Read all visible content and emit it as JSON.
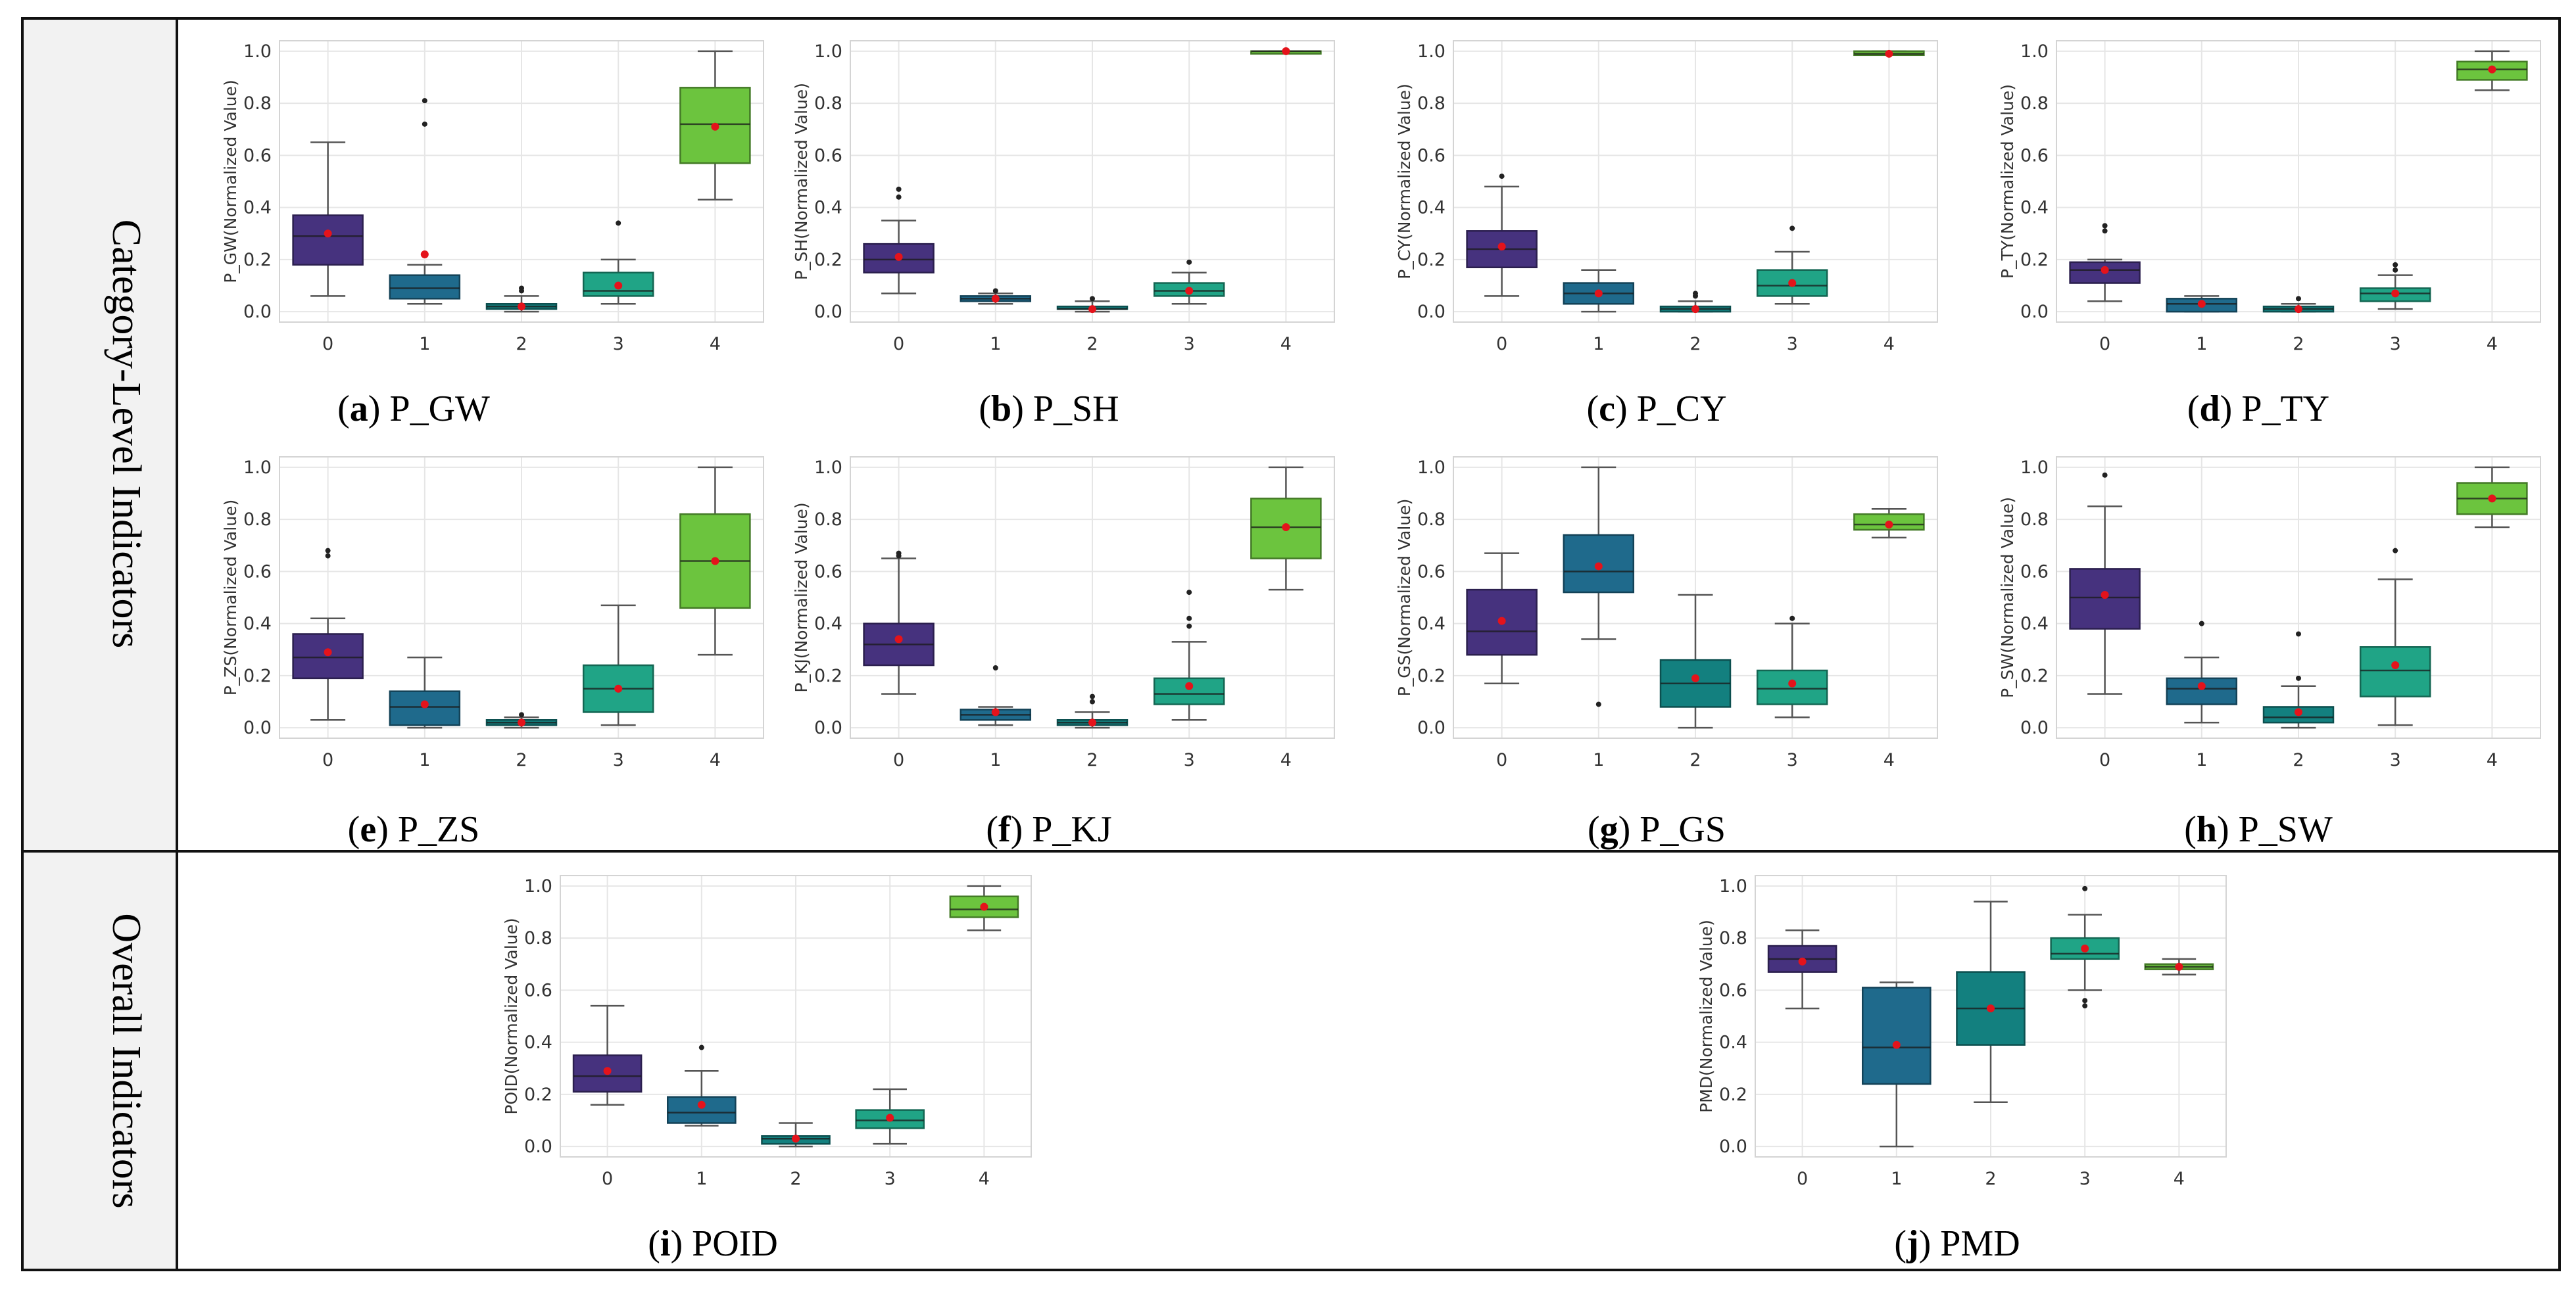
{
  "row_labels": [
    "Category-Level Indicators",
    "Overall Indicators"
  ],
  "colors": {
    "palette": [
      "#46327e",
      "#1f6a8c",
      "#13807f",
      "#20a486",
      "#6cc43e"
    ],
    "mean_marker": "#e4131b",
    "outlier": "#222222",
    "median": "#1a1a1a",
    "whisker": "#555555",
    "grid": "#e6e6e6",
    "frame": "#d4d4d4",
    "border": "#111111",
    "row_label_bg": "#f2f2f2"
  },
  "chart_data": [
    {
      "id": "a",
      "type": "box",
      "letter": "a",
      "name": "P_GW",
      "ylabel": "P_GW(Normalized Value)",
      "categories": [
        "0",
        "1",
        "2",
        "3",
        "4"
      ],
      "yticks": [
        "0.0",
        "0.2",
        "0.4",
        "0.6",
        "0.8",
        "1.0"
      ],
      "ylim": [
        -0.04,
        1.04
      ],
      "boxes": [
        {
          "category": "0",
          "whislo": 0.06,
          "q1": 0.18,
          "med": 0.29,
          "q3": 0.37,
          "whishi": 0.65,
          "mean": 0.3,
          "fliers": []
        },
        {
          "category": "1",
          "whislo": 0.03,
          "q1": 0.05,
          "med": 0.09,
          "q3": 0.14,
          "whishi": 0.18,
          "mean": 0.22,
          "fliers": [
            0.72,
            0.81
          ]
        },
        {
          "category": "2",
          "whislo": 0.0,
          "q1": 0.01,
          "med": 0.02,
          "q3": 0.03,
          "whishi": 0.06,
          "mean": 0.02,
          "fliers": [
            0.08,
            0.09
          ]
        },
        {
          "category": "3",
          "whislo": 0.03,
          "q1": 0.06,
          "med": 0.08,
          "q3": 0.15,
          "whishi": 0.2,
          "mean": 0.1,
          "fliers": [
            0.34
          ]
        },
        {
          "category": "4",
          "whislo": 0.43,
          "q1": 0.57,
          "med": 0.72,
          "q3": 0.86,
          "whishi": 1.0,
          "mean": 0.71,
          "fliers": []
        }
      ]
    },
    {
      "id": "b",
      "type": "box",
      "letter": "b",
      "name": "P_SH",
      "ylabel": "P_SH(Normalized Value)",
      "categories": [
        "0",
        "1",
        "2",
        "3",
        "4"
      ],
      "yticks": [
        "0.0",
        "0.2",
        "0.4",
        "0.6",
        "0.8",
        "1.0"
      ],
      "ylim": [
        -0.04,
        1.04
      ],
      "boxes": [
        {
          "category": "0",
          "whislo": 0.07,
          "q1": 0.15,
          "med": 0.2,
          "q3": 0.26,
          "whishi": 0.35,
          "mean": 0.21,
          "fliers": [
            0.44,
            0.47
          ]
        },
        {
          "category": "1",
          "whislo": 0.03,
          "q1": 0.04,
          "med": 0.05,
          "q3": 0.06,
          "whishi": 0.07,
          "mean": 0.05,
          "fliers": [
            0.08
          ]
        },
        {
          "category": "2",
          "whislo": 0.0,
          "q1": 0.01,
          "med": 0.01,
          "q3": 0.02,
          "whishi": 0.04,
          "mean": 0.01,
          "fliers": [
            0.05
          ]
        },
        {
          "category": "3",
          "whislo": 0.03,
          "q1": 0.06,
          "med": 0.08,
          "q3": 0.11,
          "whishi": 0.15,
          "mean": 0.08,
          "fliers": [
            0.19
          ]
        },
        {
          "category": "4",
          "whislo": 0.995,
          "q1": 0.995,
          "med": 1.0,
          "q3": 1.0,
          "whishi": 1.0,
          "mean": 1.0,
          "fliers": []
        }
      ]
    },
    {
      "id": "c",
      "type": "box",
      "letter": "c",
      "name": "P_CY",
      "ylabel": "P_CY(Normalized Value)",
      "categories": [
        "0",
        "1",
        "2",
        "3",
        "4"
      ],
      "yticks": [
        "0.0",
        "0.2",
        "0.4",
        "0.6",
        "0.8",
        "1.0"
      ],
      "ylim": [
        -0.04,
        1.04
      ],
      "boxes": [
        {
          "category": "0",
          "whislo": 0.06,
          "q1": 0.17,
          "med": 0.24,
          "q3": 0.31,
          "whishi": 0.48,
          "mean": 0.25,
          "fliers": [
            0.52
          ]
        },
        {
          "category": "1",
          "whislo": 0.0,
          "q1": 0.03,
          "med": 0.07,
          "q3": 0.11,
          "whishi": 0.16,
          "mean": 0.07,
          "fliers": []
        },
        {
          "category": "2",
          "whislo": 0.0,
          "q1": 0.0,
          "med": 0.01,
          "q3": 0.02,
          "whishi": 0.04,
          "mean": 0.01,
          "fliers": [
            0.06,
            0.07
          ]
        },
        {
          "category": "3",
          "whislo": 0.03,
          "q1": 0.06,
          "med": 0.1,
          "q3": 0.16,
          "whishi": 0.23,
          "mean": 0.11,
          "fliers": [
            0.32
          ]
        },
        {
          "category": "4",
          "whislo": 0.985,
          "q1": 0.985,
          "med": 0.99,
          "q3": 1.0,
          "whishi": 1.0,
          "mean": 0.99,
          "fliers": []
        }
      ]
    },
    {
      "id": "d",
      "type": "box",
      "letter": "d",
      "name": "P_TY",
      "ylabel": "P_TY(Normalized Value)",
      "categories": [
        "0",
        "1",
        "2",
        "3",
        "4"
      ],
      "yticks": [
        "0.0",
        "0.2",
        "0.4",
        "0.6",
        "0.8",
        "1.0"
      ],
      "ylim": [
        -0.04,
        1.04
      ],
      "boxes": [
        {
          "category": "0",
          "whislo": 0.04,
          "q1": 0.11,
          "med": 0.16,
          "q3": 0.19,
          "whishi": 0.2,
          "mean": 0.16,
          "fliers": [
            0.31,
            0.33
          ]
        },
        {
          "category": "1",
          "whislo": 0.0,
          "q1": 0.0,
          "med": 0.03,
          "q3": 0.05,
          "whishi": 0.06,
          "mean": 0.03,
          "fliers": []
        },
        {
          "category": "2",
          "whislo": 0.0,
          "q1": 0.0,
          "med": 0.01,
          "q3": 0.02,
          "whishi": 0.03,
          "mean": 0.01,
          "fliers": [
            0.05
          ]
        },
        {
          "category": "3",
          "whislo": 0.01,
          "q1": 0.04,
          "med": 0.07,
          "q3": 0.09,
          "whishi": 0.14,
          "mean": 0.07,
          "fliers": [
            0.16,
            0.18
          ]
        },
        {
          "category": "4",
          "whislo": 0.85,
          "q1": 0.89,
          "med": 0.93,
          "q3": 0.96,
          "whishi": 1.0,
          "mean": 0.93,
          "fliers": []
        }
      ]
    },
    {
      "id": "e",
      "type": "box",
      "letter": "e",
      "name": "P_ZS",
      "ylabel": "P_ZS(Normalized Value)",
      "categories": [
        "0",
        "1",
        "2",
        "3",
        "4"
      ],
      "yticks": [
        "0.0",
        "0.2",
        "0.4",
        "0.6",
        "0.8",
        "1.0"
      ],
      "ylim": [
        -0.04,
        1.04
      ],
      "boxes": [
        {
          "category": "0",
          "whislo": 0.03,
          "q1": 0.19,
          "med": 0.27,
          "q3": 0.36,
          "whishi": 0.42,
          "mean": 0.29,
          "fliers": [
            0.66,
            0.68
          ]
        },
        {
          "category": "1",
          "whislo": 0.0,
          "q1": 0.01,
          "med": 0.08,
          "q3": 0.14,
          "whishi": 0.27,
          "mean": 0.09,
          "fliers": []
        },
        {
          "category": "2",
          "whislo": 0.0,
          "q1": 0.01,
          "med": 0.02,
          "q3": 0.03,
          "whishi": 0.04,
          "mean": 0.02,
          "fliers": [
            0.05
          ]
        },
        {
          "category": "3",
          "whislo": 0.01,
          "q1": 0.06,
          "med": 0.15,
          "q3": 0.24,
          "whishi": 0.47,
          "mean": 0.15,
          "fliers": []
        },
        {
          "category": "4",
          "whislo": 0.28,
          "q1": 0.46,
          "med": 0.64,
          "q3": 0.82,
          "whishi": 1.0,
          "mean": 0.64,
          "fliers": []
        }
      ]
    },
    {
      "id": "f",
      "type": "box",
      "letter": "f",
      "name": "P_KJ",
      "ylabel": "P_KJ(Normalized Value)",
      "categories": [
        "0",
        "1",
        "2",
        "3",
        "4"
      ],
      "yticks": [
        "0.0",
        "0.2",
        "0.4",
        "0.6",
        "0.8",
        "1.0"
      ],
      "ylim": [
        -0.04,
        1.04
      ],
      "boxes": [
        {
          "category": "0",
          "whislo": 0.13,
          "q1": 0.24,
          "med": 0.32,
          "q3": 0.4,
          "whishi": 0.65,
          "mean": 0.34,
          "fliers": [
            0.66,
            0.67
          ]
        },
        {
          "category": "1",
          "whislo": 0.01,
          "q1": 0.03,
          "med": 0.05,
          "q3": 0.07,
          "whishi": 0.08,
          "mean": 0.06,
          "fliers": [
            0.23
          ]
        },
        {
          "category": "2",
          "whislo": 0.0,
          "q1": 0.01,
          "med": 0.02,
          "q3": 0.03,
          "whishi": 0.06,
          "mean": 0.02,
          "fliers": [
            0.1,
            0.12
          ]
        },
        {
          "category": "3",
          "whislo": 0.03,
          "q1": 0.09,
          "med": 0.13,
          "q3": 0.19,
          "whishi": 0.33,
          "mean": 0.16,
          "fliers": [
            0.39,
            0.42,
            0.52
          ]
        },
        {
          "category": "4",
          "whislo": 0.53,
          "q1": 0.65,
          "med": 0.77,
          "q3": 0.88,
          "whishi": 1.0,
          "mean": 0.77,
          "fliers": []
        }
      ]
    },
    {
      "id": "g",
      "type": "box",
      "letter": "g",
      "name": "P_GS",
      "ylabel": "P_GS(Normalized Value)",
      "categories": [
        "0",
        "1",
        "2",
        "3",
        "4"
      ],
      "yticks": [
        "0.0",
        "0.2",
        "0.4",
        "0.6",
        "0.8",
        "1.0"
      ],
      "ylim": [
        -0.04,
        1.04
      ],
      "boxes": [
        {
          "category": "0",
          "whislo": 0.17,
          "q1": 0.28,
          "med": 0.37,
          "q3": 0.53,
          "whishi": 0.67,
          "mean": 0.41,
          "fliers": []
        },
        {
          "category": "1",
          "whislo": 0.34,
          "q1": 0.52,
          "med": 0.6,
          "q3": 0.74,
          "whishi": 1.0,
          "mean": 0.62,
          "fliers": [
            0.09
          ]
        },
        {
          "category": "2",
          "whislo": 0.0,
          "q1": 0.08,
          "med": 0.17,
          "q3": 0.26,
          "whishi": 0.51,
          "mean": 0.19,
          "fliers": []
        },
        {
          "category": "3",
          "whislo": 0.04,
          "q1": 0.09,
          "med": 0.15,
          "q3": 0.22,
          "whishi": 0.4,
          "mean": 0.17,
          "fliers": [
            0.42
          ]
        },
        {
          "category": "4",
          "whislo": 0.73,
          "q1": 0.76,
          "med": 0.78,
          "q3": 0.82,
          "whishi": 0.84,
          "mean": 0.78,
          "fliers": []
        }
      ]
    },
    {
      "id": "h",
      "type": "box",
      "letter": "h",
      "name": "P_SW",
      "ylabel": "P_SW(Normalized Value)",
      "categories": [
        "0",
        "1",
        "2",
        "3",
        "4"
      ],
      "yticks": [
        "0.0",
        "0.2",
        "0.4",
        "0.6",
        "0.8",
        "1.0"
      ],
      "ylim": [
        -0.04,
        1.04
      ],
      "boxes": [
        {
          "category": "0",
          "whislo": 0.13,
          "q1": 0.38,
          "med": 0.5,
          "q3": 0.61,
          "whishi": 0.85,
          "mean": 0.51,
          "fliers": [
            0.97
          ]
        },
        {
          "category": "1",
          "whislo": 0.02,
          "q1": 0.09,
          "med": 0.15,
          "q3": 0.19,
          "whishi": 0.27,
          "mean": 0.16,
          "fliers": [
            0.4
          ]
        },
        {
          "category": "2",
          "whislo": 0.0,
          "q1": 0.02,
          "med": 0.04,
          "q3": 0.08,
          "whishi": 0.16,
          "mean": 0.06,
          "fliers": [
            0.19,
            0.36
          ]
        },
        {
          "category": "3",
          "whislo": 0.01,
          "q1": 0.12,
          "med": 0.22,
          "q3": 0.31,
          "whishi": 0.57,
          "mean": 0.24,
          "fliers": [
            0.68
          ]
        },
        {
          "category": "4",
          "whislo": 0.77,
          "q1": 0.82,
          "med": 0.88,
          "q3": 0.94,
          "whishi": 1.0,
          "mean": 0.88,
          "fliers": []
        }
      ]
    },
    {
      "id": "i",
      "type": "box",
      "letter": "i",
      "name": "POID",
      "ylabel": "POID(Normalized Value)",
      "categories": [
        "0",
        "1",
        "2",
        "3",
        "4"
      ],
      "yticks": [
        "0.0",
        "0.2",
        "0.4",
        "0.6",
        "0.8",
        "1.0"
      ],
      "ylim": [
        -0.04,
        1.04
      ],
      "boxes": [
        {
          "category": "0",
          "whislo": 0.16,
          "q1": 0.21,
          "med": 0.27,
          "q3": 0.35,
          "whishi": 0.54,
          "mean": 0.29,
          "fliers": []
        },
        {
          "category": "1",
          "whislo": 0.08,
          "q1": 0.09,
          "med": 0.13,
          "q3": 0.19,
          "whishi": 0.29,
          "mean": 0.16,
          "fliers": [
            0.38
          ]
        },
        {
          "category": "2",
          "whislo": 0.0,
          "q1": 0.01,
          "med": 0.03,
          "q3": 0.04,
          "whishi": 0.09,
          "mean": 0.03,
          "fliers": []
        },
        {
          "category": "3",
          "whislo": 0.01,
          "q1": 0.07,
          "med": 0.1,
          "q3": 0.14,
          "whishi": 0.22,
          "mean": 0.11,
          "fliers": []
        },
        {
          "category": "4",
          "whislo": 0.83,
          "q1": 0.88,
          "med": 0.91,
          "q3": 0.96,
          "whishi": 1.0,
          "mean": 0.92,
          "fliers": []
        }
      ]
    },
    {
      "id": "j",
      "type": "box",
      "letter": "j",
      "name": "PMD",
      "ylabel": "PMD(Normalized Value)",
      "categories": [
        "0",
        "1",
        "2",
        "3",
        "4"
      ],
      "yticks": [
        "0.0",
        "0.2",
        "0.4",
        "0.6",
        "0.8",
        "1.0"
      ],
      "ylim": [
        -0.04,
        1.04
      ],
      "boxes": [
        {
          "category": "0",
          "whislo": 0.53,
          "q1": 0.67,
          "med": 0.72,
          "q3": 0.77,
          "whishi": 0.83,
          "mean": 0.71,
          "fliers": []
        },
        {
          "category": "1",
          "whislo": 0.0,
          "q1": 0.24,
          "med": 0.38,
          "q3": 0.61,
          "whishi": 0.63,
          "mean": 0.39,
          "fliers": []
        },
        {
          "category": "2",
          "whislo": 0.17,
          "q1": 0.39,
          "med": 0.53,
          "q3": 0.67,
          "whishi": 0.94,
          "mean": 0.53,
          "fliers": []
        },
        {
          "category": "3",
          "whislo": 0.6,
          "q1": 0.72,
          "med": 0.74,
          "q3": 0.8,
          "whishi": 0.89,
          "mean": 0.76,
          "fliers": [
            0.54,
            0.56,
            0.99
          ]
        },
        {
          "category": "4",
          "whislo": 0.66,
          "q1": 0.68,
          "med": 0.69,
          "q3": 0.7,
          "whishi": 0.72,
          "mean": 0.69,
          "fliers": []
        }
      ]
    }
  ]
}
